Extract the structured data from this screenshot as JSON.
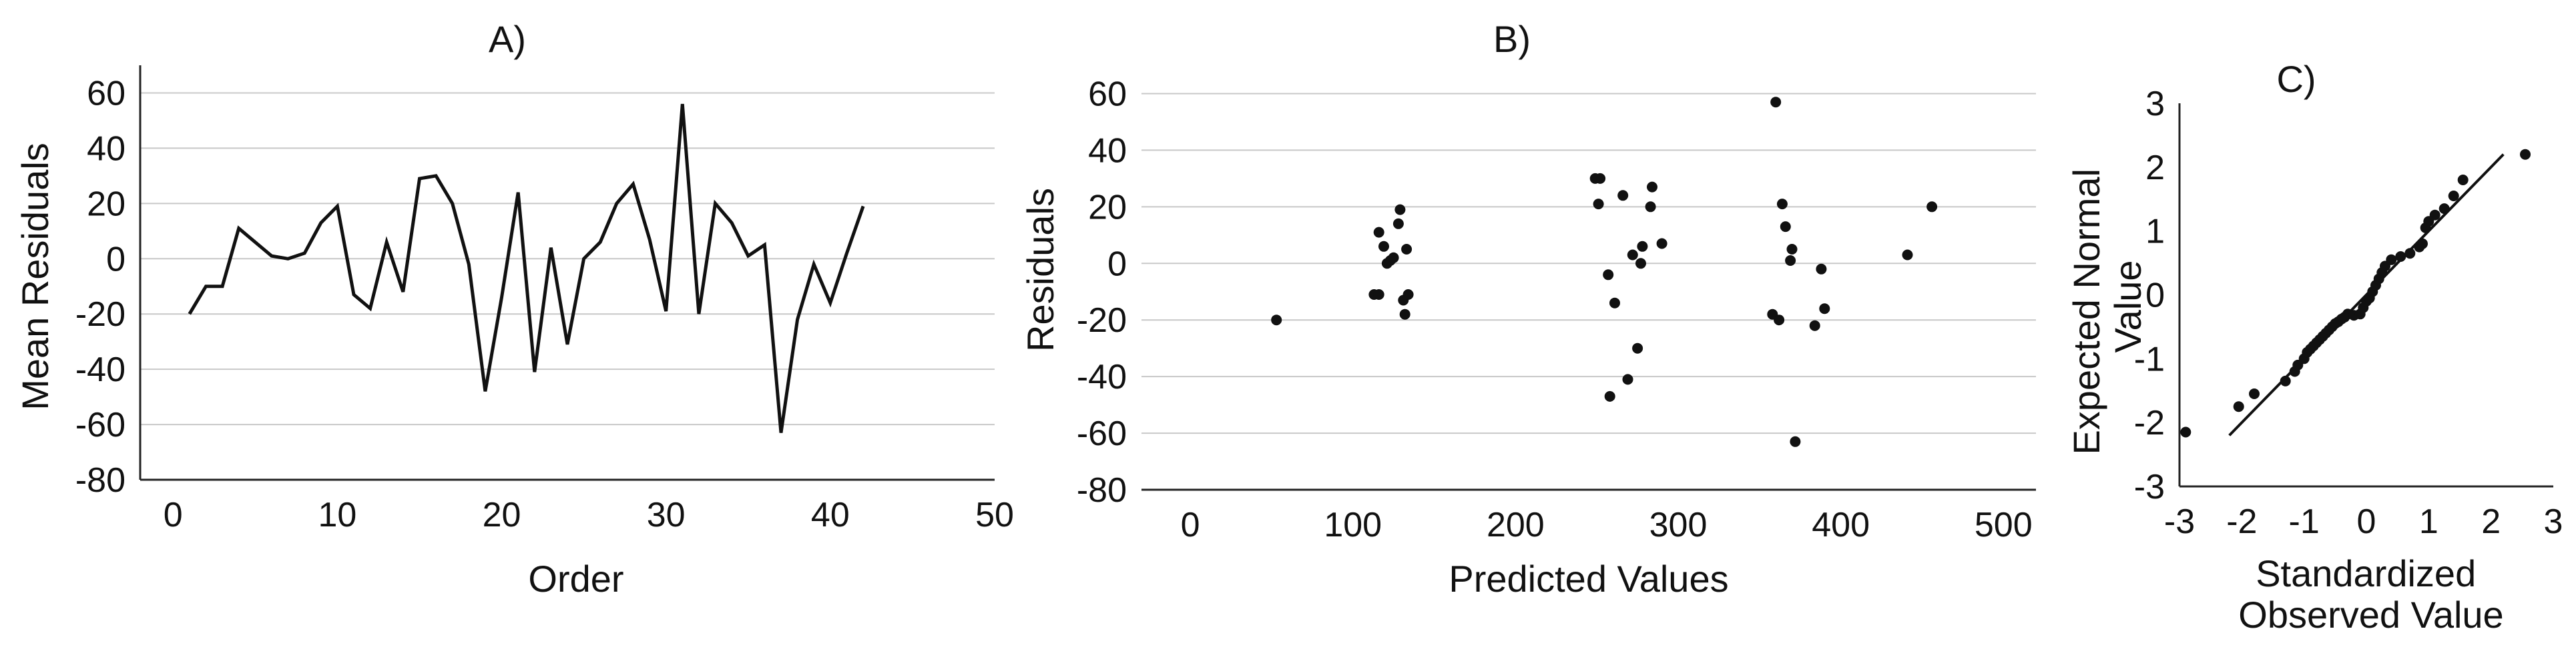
{
  "chart_data": [
    {
      "type": "line",
      "title": "A)",
      "xlabel": "Order",
      "ylabel": "Mean Residuals",
      "xlim": [
        -2,
        50
      ],
      "ylim": [
        -80,
        70
      ],
      "xticks": [
        0,
        10,
        20,
        30,
        40,
        50
      ],
      "yticks": [
        -80,
        -60,
        -40,
        -20,
        0,
        20,
        40,
        60
      ],
      "grid": "horizontal",
      "series": [
        {
          "x": [
            1,
            2,
            3,
            4,
            5,
            6,
            7,
            8,
            9,
            10,
            11,
            12,
            13,
            14,
            15,
            16,
            17,
            18,
            19,
            20,
            21,
            22,
            23,
            24,
            25,
            26,
            27,
            28,
            29,
            30,
            31,
            32,
            33,
            34,
            35,
            36,
            37,
            38,
            39,
            40,
            41,
            42
          ],
          "values": [
            -20,
            -10,
            -10,
            11,
            6,
            1,
            0,
            2,
            13,
            19,
            -13,
            -18,
            6,
            -12,
            29,
            30,
            20,
            -2,
            -48,
            -14,
            24,
            -41,
            4,
            -31,
            0,
            6,
            20,
            27,
            7,
            -19,
            56,
            -20,
            20,
            13,
            1,
            5,
            -63,
            -22,
            -2,
            -16,
            2,
            19
          ]
        }
      ]
    },
    {
      "type": "scatter",
      "title": "B)",
      "xlabel": "Predicted Values",
      "ylabel": "Residuals",
      "xlim": [
        -30,
        520
      ],
      "ylim": [
        -80,
        70
      ],
      "xticks": [
        0,
        100,
        200,
        300,
        400,
        500
      ],
      "yticks": [
        -80,
        -60,
        -40,
        -20,
        0,
        20,
        40,
        60
      ],
      "grid": "horizontal",
      "series": [
        {
          "points": [
            [
              53,
              -20
            ],
            [
              113,
              -11
            ],
            [
              116,
              -11
            ],
            [
              116,
              11
            ],
            [
              119,
              6
            ],
            [
              121,
              0
            ],
            [
              123,
              1
            ],
            [
              125,
              2
            ],
            [
              128,
              14
            ],
            [
              129,
              19
            ],
            [
              131,
              -13
            ],
            [
              132,
              -18
            ],
            [
              133,
              5
            ],
            [
              134,
              -11
            ],
            [
              249,
              30
            ],
            [
              251,
              21
            ],
            [
              252,
              30
            ],
            [
              257,
              -4
            ],
            [
              258,
              -47
            ],
            [
              261,
              -14
            ],
            [
              266,
              24
            ],
            [
              269,
              -41
            ],
            [
              272,
              3
            ],
            [
              275,
              -30
            ],
            [
              277,
              0
            ],
            [
              278,
              6
            ],
            [
              283,
              20
            ],
            [
              284,
              27
            ],
            [
              290,
              7
            ],
            [
              358,
              -18
            ],
            [
              360,
              57
            ],
            [
              362,
              -20
            ],
            [
              364,
              21
            ],
            [
              366,
              13
            ],
            [
              369,
              1
            ],
            [
              370,
              5
            ],
            [
              372,
              -63
            ],
            [
              384,
              -22
            ],
            [
              388,
              -2
            ],
            [
              390,
              -16
            ],
            [
              441,
              3
            ],
            [
              456,
              20
            ]
          ]
        }
      ]
    },
    {
      "type": "scatter",
      "title": "C)",
      "xlabel": "Standardized Observed Value",
      "ylabel": "Expected Normal Value",
      "xlim": [
        -3,
        3
      ],
      "ylim": [
        -3,
        3
      ],
      "xticks": [
        -3,
        -2,
        -1,
        0,
        1,
        2,
        3
      ],
      "yticks": [
        -3,
        -2,
        -1,
        0,
        1,
        2,
        3
      ],
      "grid": "none",
      "reference_line": {
        "x": [
          -2.2,
          2.2
        ],
        "y": [
          -2.2,
          2.2
        ]
      },
      "series": [
        {
          "points": [
            [
              -2.9,
              -2.15
            ],
            [
              -2.05,
              -1.75
            ],
            [
              -1.8,
              -1.55
            ],
            [
              -1.3,
              -1.35
            ],
            [
              -1.15,
              -1.2
            ],
            [
              -1.1,
              -1.1
            ],
            [
              -1.0,
              -1.0
            ],
            [
              -0.95,
              -0.9
            ],
            [
              -0.9,
              -0.85
            ],
            [
              -0.85,
              -0.8
            ],
            [
              -0.8,
              -0.75
            ],
            [
              -0.75,
              -0.7
            ],
            [
              -0.7,
              -0.65
            ],
            [
              -0.65,
              -0.6
            ],
            [
              -0.6,
              -0.55
            ],
            [
              -0.55,
              -0.5
            ],
            [
              -0.5,
              -0.45
            ],
            [
              -0.45,
              -0.42
            ],
            [
              -0.4,
              -0.38
            ],
            [
              -0.35,
              -0.35
            ],
            [
              -0.3,
              -0.3
            ],
            [
              -0.2,
              -0.32
            ],
            [
              -0.1,
              -0.3
            ],
            [
              -0.05,
              -0.2
            ],
            [
              0.0,
              -0.1
            ],
            [
              0.05,
              -0.05
            ],
            [
              0.1,
              0.05
            ],
            [
              0.15,
              0.15
            ],
            [
              0.2,
              0.25
            ],
            [
              0.25,
              0.35
            ],
            [
              0.3,
              0.45
            ],
            [
              0.4,
              0.55
            ],
            [
              0.55,
              0.6
            ],
            [
              0.7,
              0.65
            ],
            [
              0.85,
              0.75
            ],
            [
              0.9,
              0.8
            ],
            [
              0.95,
              1.05
            ],
            [
              1.0,
              1.15
            ],
            [
              1.1,
              1.25
            ],
            [
              1.25,
              1.35
            ],
            [
              1.4,
              1.55
            ],
            [
              1.55,
              1.8
            ],
            [
              2.55,
              2.2
            ]
          ]
        }
      ]
    }
  ]
}
